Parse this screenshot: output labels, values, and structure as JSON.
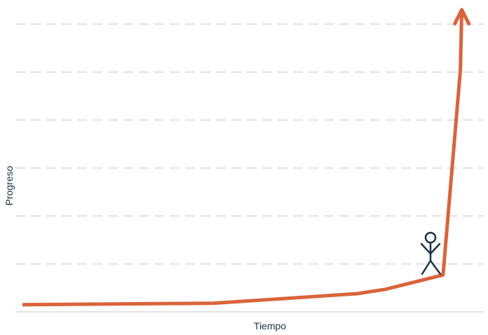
{
  "chart_data": {
    "type": "line",
    "x_label": "Tiempo",
    "y_label": "Progreso",
    "x": [
      1.5,
      42.4,
      73,
      79,
      91.3,
      95,
      95.3
    ],
    "series": [
      {
        "color": "#d9643c",
        "values": [
          0.15,
          0.18,
          0.38,
          0.47,
          0.77,
          5.04,
          6.3
        ]
      }
    ],
    "xlim": [
      0,
      100
    ],
    "ylim": [
      0,
      6.4
    ],
    "grid_lines": [
      0,
      1,
      2,
      3,
      4,
      5,
      6
    ],
    "grid": true,
    "arrow_end": true
  }
}
